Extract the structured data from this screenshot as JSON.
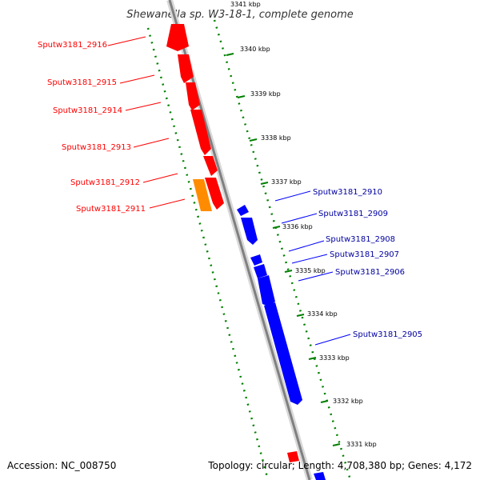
{
  "title": "Shewanella sp. W3-18-1, complete genome",
  "accession": "Accession: NC_008750",
  "summary": "Topology: circular; Length: 4,708,380 bp; Genes: 4,172",
  "colors": {
    "forward_strand": "#ff0000",
    "reverse_strand": "#0000ff",
    "highlight_gene": "#ff8c00",
    "backbone": "#808080",
    "ticks": "#008000"
  },
  "ticks": [
    "3341 kbp",
    "3340 kbp",
    "3339 kbp",
    "3338 kbp",
    "3337 kbp",
    "3336 kbp",
    "3335 kbp",
    "3334 kbp",
    "3333 kbp",
    "3332 kbp",
    "3331 kbp"
  ],
  "forward_genes": [
    "Sputw3181_2916",
    "Sputw3181_2915",
    "Sputw3181_2914",
    "Sputw3181_2913",
    "Sputw3181_2912",
    "Sputw3181_2911"
  ],
  "reverse_genes": [
    "Sputw3181_2910",
    "Sputw3181_2909",
    "Sputw3181_2908",
    "Sputw3181_2907",
    "Sputw3181_2906",
    "Sputw3181_2905"
  ]
}
